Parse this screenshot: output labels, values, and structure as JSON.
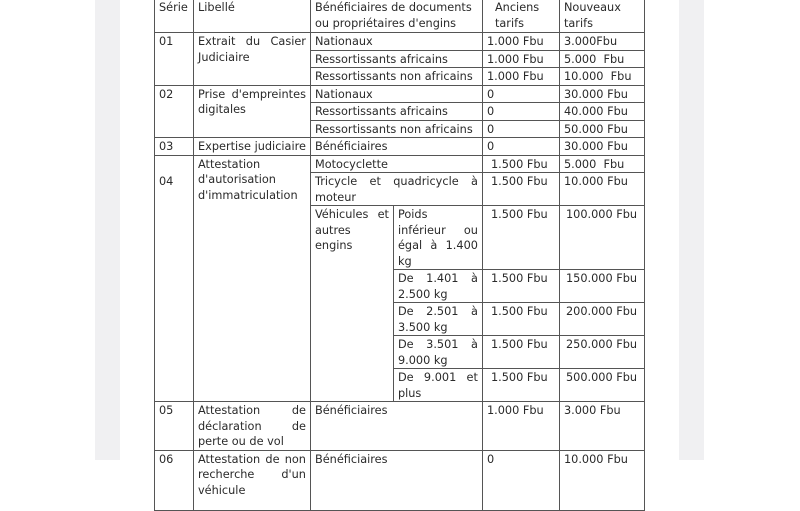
{
  "table": {
    "headers": {
      "serie": "Série",
      "libelle": "Libellé",
      "beneficiaires": "Bénéficiaires de documents ou propriétaires d'engins",
      "anciens": "Anciens tarifs",
      "nouveaux": "Nouveaux tarifs"
    },
    "rows": [
      {
        "serie": "01",
        "libelle": "Extrait du Casier Judiciaire",
        "items": [
          {
            "beneficiaire": "Nationaux",
            "ancien": "1.000 Fbu",
            "nouveau": "3.000Fbu"
          },
          {
            "beneficiaire": "Ressortissants africains",
            "ancien": "1.000 Fbu",
            "nouveau": "5.000  Fbu"
          },
          {
            "beneficiaire": "Ressortissants non africains",
            "ancien": "1.000 Fbu",
            "nouveau": "10.000  Fbu"
          }
        ]
      },
      {
        "serie": "02",
        "libelle": "Prise d'empreintes digitales",
        "items": [
          {
            "beneficiaire": "Nationaux",
            "ancien": "0",
            "nouveau": "30.000 Fbu"
          },
          {
            "beneficiaire": "Ressortissants africains",
            "ancien": "0",
            "nouveau": "40.000 Fbu"
          },
          {
            "beneficiaire": "Ressortissants non africains",
            "ancien": "0",
            "nouveau": "50.000 Fbu"
          }
        ]
      },
      {
        "serie": "03",
        "libelle": "Expertise judiciaire",
        "items": [
          {
            "beneficiaire": "Bénéficiaires",
            "ancien": "0",
            "nouveau": "30.000 Fbu"
          }
        ]
      },
      {
        "serie": "04",
        "libelle": "Attestation d'autorisation d'immatriculation",
        "items": [
          {
            "beneficiaire": "Motocyclette",
            "ancien": "1.500 Fbu",
            "nouveau": "5.000  Fbu"
          },
          {
            "beneficiaire": "Tricycle et quadricycle à moteur",
            "ancien": "1.500 Fbu",
            "nouveau": "10.000 Fbu"
          }
        ],
        "vehicules": {
          "label": "Véhicules et autres engins",
          "items": [
            {
              "poids": "Poids inférieur ou égal à 1.400 kg",
              "ancien": "1.500 Fbu",
              "nouveau": "100.000 Fbu"
            },
            {
              "poids": "De 1.401 à 2.500 kg",
              "ancien": "1.500 Fbu",
              "nouveau": "150.000 Fbu"
            },
            {
              "poids": "De 2.501 à 3.500 kg",
              "ancien": "1.500 Fbu",
              "nouveau": "200.000 Fbu"
            },
            {
              "poids": "De 3.501 à 9.000 kg",
              "ancien": "1.500 Fbu",
              "nouveau": "250.000 Fbu"
            },
            {
              "poids": "De 9.001 et plus",
              "ancien": "1.500 Fbu",
              "nouveau": "500.000 Fbu"
            }
          ]
        }
      },
      {
        "serie": "05",
        "libelle": "Attestation de déclaration de perte ou de vol",
        "items": [
          {
            "beneficiaire": "Bénéficiaires",
            "ancien": "1.000 Fbu",
            "nouveau": "3.000 Fbu"
          }
        ]
      },
      {
        "serie": "06",
        "libelle": "Attestation de non recherche d'un véhicule",
        "items": [
          {
            "beneficiaire": "Bénéficiaires",
            "ancien": "0",
            "nouveau": "10.000 Fbu"
          }
        ]
      }
    ]
  }
}
